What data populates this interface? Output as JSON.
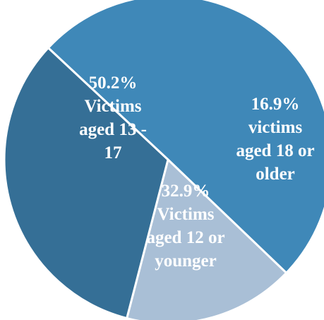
{
  "chart_data": {
    "type": "pie",
    "title": "",
    "legend": "none",
    "slices": [
      {
        "value": 50.2,
        "label_lines": [
          "50.2%",
          "Victims",
          "aged 13 -",
          "17"
        ],
        "color": "#3f88b8"
      },
      {
        "value": 16.9,
        "label_lines": [
          "16.9%",
          "victims",
          "aged 18 or",
          "older"
        ],
        "color": "#a9bfd6"
      },
      {
        "value": 32.9,
        "label_lines": [
          "32.9%",
          "Victims",
          "aged 12 or",
          "younger"
        ],
        "color": "#356f96"
      }
    ]
  }
}
